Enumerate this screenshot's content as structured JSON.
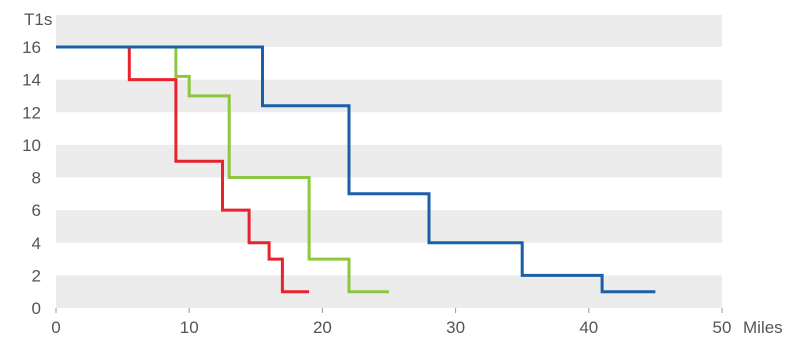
{
  "chart_data": {
    "type": "line",
    "step": true,
    "title": "",
    "xlabel": "Miles",
    "ylabel": "T1s",
    "xlim": [
      0,
      50
    ],
    "ylim": [
      0,
      17
    ],
    "x_ticks": [
      0,
      10,
      20,
      30,
      40,
      50
    ],
    "y_ticks": [
      0,
      2,
      4,
      6,
      8,
      10,
      12,
      14,
      16
    ],
    "background_bands": true,
    "band_color": "#ececec",
    "series": [
      {
        "color": "#e8232d",
        "points": [
          [
            5.5,
            16
          ],
          [
            5.5,
            14
          ],
          [
            9,
            14
          ],
          [
            9,
            9
          ],
          [
            12.5,
            9
          ],
          [
            12.5,
            6
          ],
          [
            14.5,
            6
          ],
          [
            14.5,
            4
          ],
          [
            16,
            4
          ],
          [
            16,
            3
          ],
          [
            17,
            3
          ],
          [
            17,
            1
          ],
          [
            19,
            1
          ]
        ]
      },
      {
        "color": "#8dc63f",
        "points": [
          [
            9,
            16
          ],
          [
            9,
            14.2
          ],
          [
            10,
            14.2
          ],
          [
            10,
            13
          ],
          [
            13,
            13
          ],
          [
            13,
            8
          ],
          [
            19,
            8
          ],
          [
            19,
            3
          ],
          [
            22,
            3
          ],
          [
            22,
            1
          ],
          [
            25,
            1
          ]
        ]
      },
      {
        "color": "#1a5fa8",
        "points": [
          [
            0,
            16
          ],
          [
            15.5,
            16
          ],
          [
            15.5,
            12.4
          ],
          [
            22,
            12.4
          ],
          [
            22,
            7
          ],
          [
            28,
            7
          ],
          [
            28,
            4
          ],
          [
            35,
            4
          ],
          [
            35,
            2
          ],
          [
            41,
            2
          ],
          [
            41,
            1
          ],
          [
            45,
            1
          ]
        ]
      }
    ]
  }
}
